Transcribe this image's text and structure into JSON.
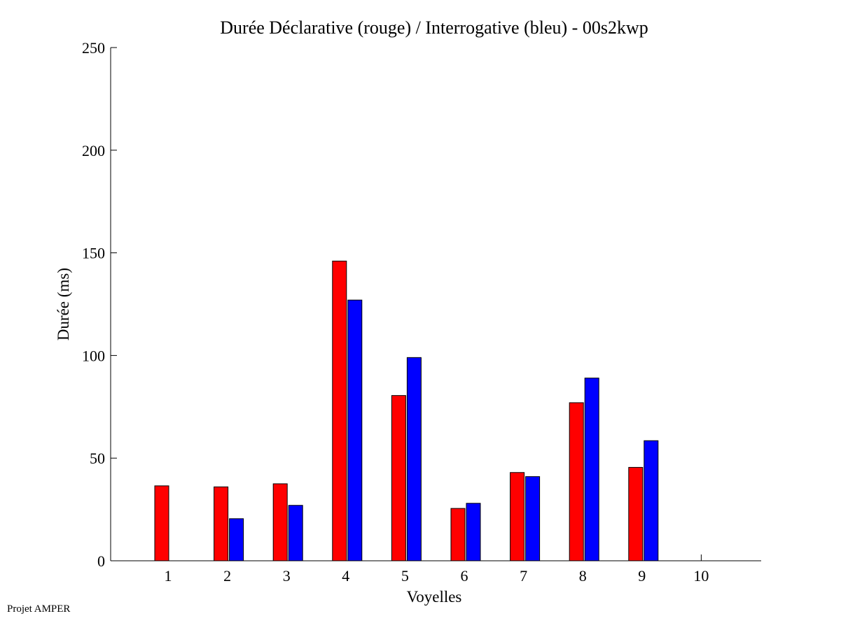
{
  "chart_data": {
    "type": "bar",
    "title": "Durée Déclarative (rouge) / Interrogative (bleu) - 00s2kwp",
    "xlabel": "Voyelles",
    "ylabel": "Durée (ms)",
    "categories": [
      "1",
      "2",
      "3",
      "4",
      "5",
      "6",
      "7",
      "8",
      "9",
      "10"
    ],
    "series": [
      {
        "values": [
          36.5,
          36,
          37.5,
          146,
          80.5,
          25.5,
          43,
          77,
          45.5,
          null
        ],
        "color": "#ff0000"
      },
      {
        "values": [
          null,
          20.5,
          27,
          127,
          99,
          28,
          41,
          89,
          58.5,
          null
        ],
        "color": "#0000ff"
      }
    ],
    "ylim": [
      0,
      250
    ],
    "yticks": [
      0,
      50,
      100,
      150,
      200,
      250
    ],
    "grid": false,
    "legend": "none"
  },
  "footer": "Projet AMPER"
}
